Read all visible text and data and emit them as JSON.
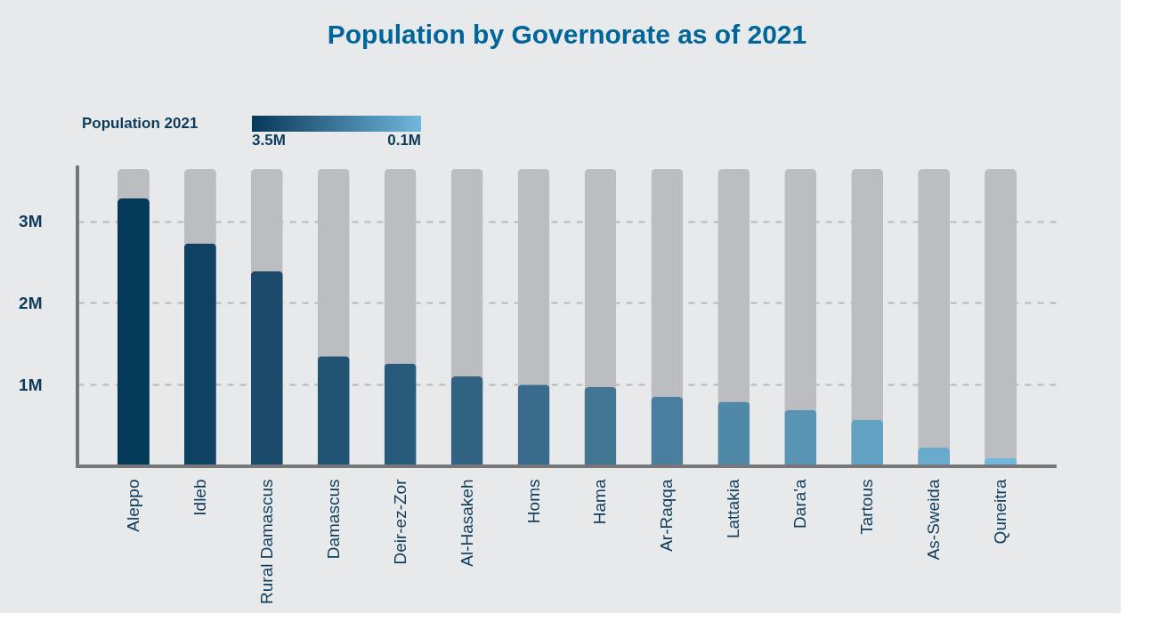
{
  "chart_data": {
    "type": "bar",
    "title": "Population by Governorate as of 2021",
    "categories": [
      "Aleppo",
      "Idleb",
      "Rural Damascus",
      "Damascus",
      "Deir-ez-Zor",
      "Al-Hasakeh",
      "Homs",
      "Hama",
      "Ar-Raqqa",
      "Lattakia",
      "Dara'a",
      "Tartous",
      "As-Sweida",
      "Quneitra"
    ],
    "values": [
      3.28,
      2.73,
      2.39,
      1.35,
      1.26,
      1.1,
      1.0,
      0.97,
      0.85,
      0.79,
      0.69,
      0.57,
      0.23,
      0.1
    ],
    "colors": [
      "#033a5a",
      "#0f4262",
      "#1b4a6a",
      "#215373",
      "#285b7b",
      "#316282",
      "#386b8c",
      "#417592",
      "#4a7e9e",
      "#5089a8",
      "#5a94b5",
      "#62a1c1",
      "#68abcf",
      "#6fb8dc"
    ],
    "ylim": [
      0,
      3.64
    ],
    "yticks": [
      {
        "value": 1,
        "label": "1M"
      },
      {
        "value": 2,
        "label": "2M"
      },
      {
        "value": 3,
        "label": "3M"
      }
    ],
    "grid": "y",
    "clabel": "Population 2021",
    "clim": [
      3.5,
      0.1
    ],
    "cticks": [
      {
        "value": 3.5,
        "label": "3.5M"
      },
      {
        "value": 0.1,
        "label": "0.1M"
      }
    ]
  }
}
